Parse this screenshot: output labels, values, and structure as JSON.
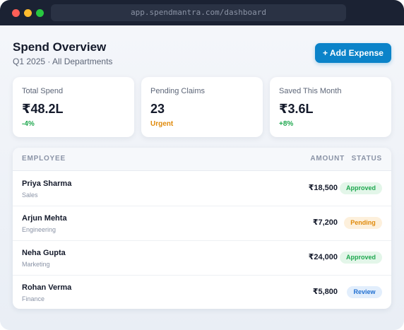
{
  "browser": {
    "url": "app.spendmantra.com/dashboard"
  },
  "header": {
    "title": "Spend Overview",
    "subtitle": "Q1 2025 · All Departments",
    "button": "+ Add Expense"
  },
  "stats": [
    {
      "label": "Total Spend",
      "value": "₹48.2L",
      "note": "-4%"
    },
    {
      "label": "Pending Claims",
      "value": "23",
      "note": "Urgent"
    },
    {
      "label": "Saved This Month",
      "value": "₹3.6L",
      "note": "+8%"
    }
  ],
  "table": {
    "columns": [
      "EMPLOYEE",
      "AMOUNT",
      "STATUS"
    ],
    "rows": [
      {
        "name": "Priya Sharma",
        "department": "Sales",
        "amount": "₹18,500",
        "status": "Approved"
      },
      {
        "name": "Arjun Mehta",
        "department": "Engineering",
        "amount": "₹7,200",
        "status": "Pending"
      },
      {
        "name": "Neha Gupta",
        "department": "Marketing",
        "amount": "₹24,000",
        "status": "Approved"
      },
      {
        "name": "Rohan Verma",
        "department": "Finance",
        "amount": "₹5,800",
        "status": "Review"
      }
    ]
  }
}
